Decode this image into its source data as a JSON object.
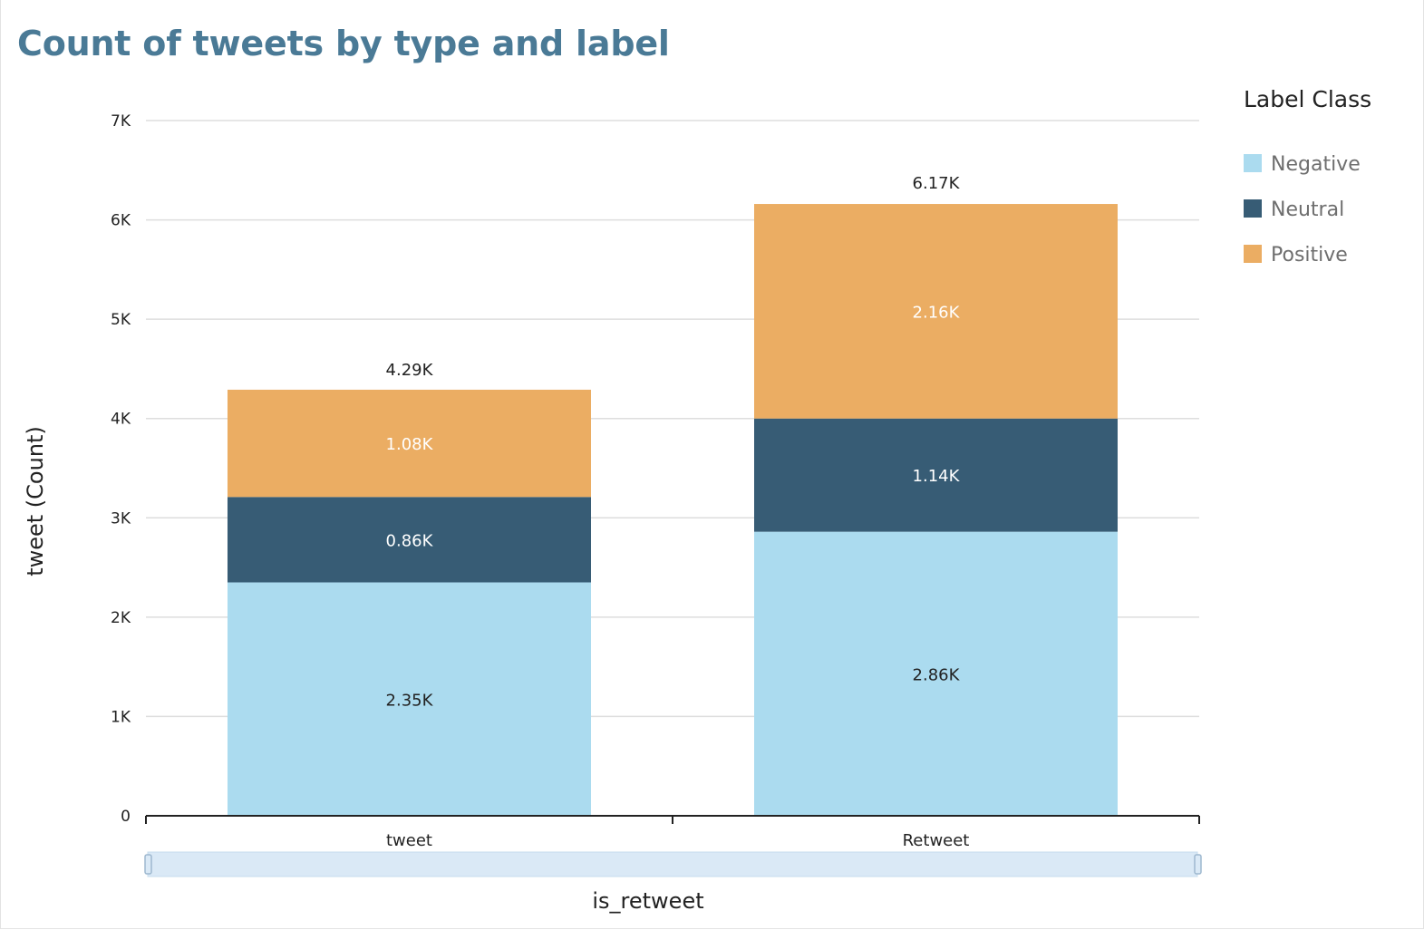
{
  "chart_data": {
    "type": "bar",
    "stacked": true,
    "title": "Count of tweets by type and label",
    "xlabel": "is_retweet",
    "ylabel": "tweet (Count)",
    "categories": [
      "tweet",
      "Retweet"
    ],
    "ylim": [
      0,
      7000
    ],
    "yticks": [
      0,
      1000,
      2000,
      3000,
      4000,
      5000,
      6000,
      7000
    ],
    "ytick_labels": [
      "0",
      "1K",
      "2K",
      "3K",
      "4K",
      "5K",
      "6K",
      "7K"
    ],
    "grid": true,
    "legend": {
      "title": "Label Class",
      "position": "right"
    },
    "series": [
      {
        "name": "Negative",
        "color": "#abdbef",
        "label_color": "#222222",
        "values": [
          2350,
          2860
        ],
        "labels": [
          "2.35K",
          "2.86K"
        ]
      },
      {
        "name": "Neutral",
        "color": "#375c75",
        "label_color": "#ffffff",
        "values": [
          860,
          1140
        ],
        "labels": [
          "0.86K",
          "1.14K"
        ]
      },
      {
        "name": "Positive",
        "color": "#ebad63",
        "label_color": "#ffffff",
        "values": [
          1080,
          2160
        ],
        "labels": [
          "1.08K",
          "2.16K"
        ]
      }
    ],
    "totals": [
      4290,
      6170
    ],
    "total_labels": [
      "4.29K",
      "6.17K"
    ]
  }
}
